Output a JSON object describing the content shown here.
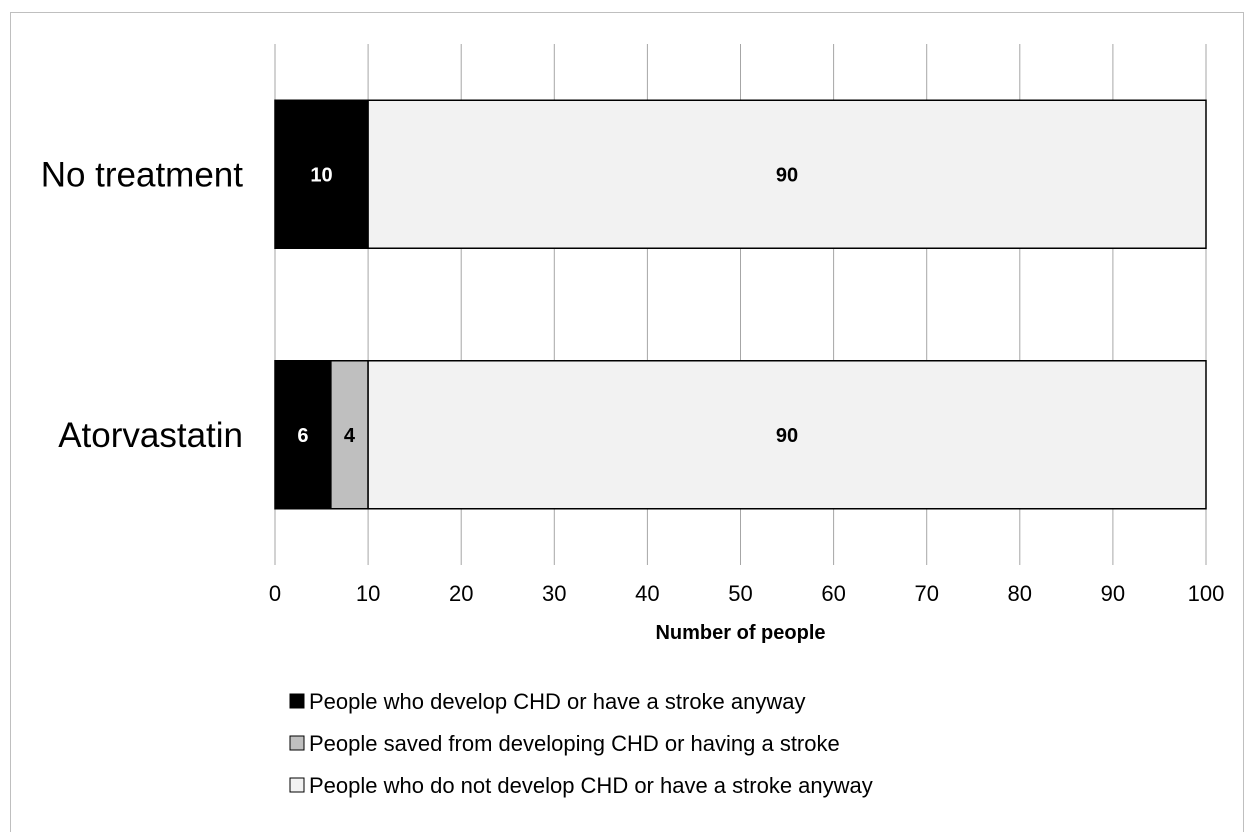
{
  "chart_data": {
    "type": "bar",
    "orientation": "horizontal",
    "stacked": true,
    "categories": [
      "No treatment",
      "Atorvastatin"
    ],
    "series": [
      {
        "name": "People who develop CHD or have a stroke anyway",
        "values": [
          10,
          6
        ],
        "color": "#000000",
        "label_color": "#ffffff"
      },
      {
        "name": "People saved from developing CHD or having a stroke",
        "values": [
          0,
          4
        ],
        "color": "#bfbfbf",
        "label_color": "#000000"
      },
      {
        "name": "People who do not develop CHD or have a stroke anyway",
        "values": [
          90,
          90
        ],
        "color": "#f2f2f2",
        "label_color": "#000000"
      }
    ],
    "xlabel": "Number of people",
    "xlim": [
      0,
      100
    ],
    "xticks": [
      0,
      10,
      20,
      30,
      40,
      50,
      60,
      70,
      80,
      90,
      100
    ],
    "grid": true,
    "legend_position": "bottom"
  }
}
